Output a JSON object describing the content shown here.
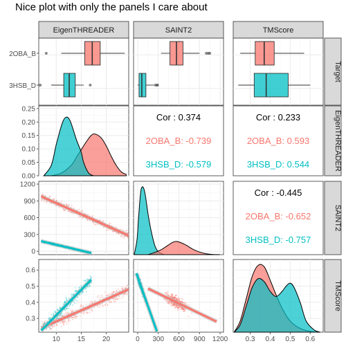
{
  "chart_data": {
    "type": "pairs",
    "title": "Nice plot with only the panels I care about",
    "variables": [
      "EigenTHREADER",
      "SAINT2",
      "TMScore"
    ],
    "row_labels": [
      "Target",
      "EigenTHREADER",
      "SAINT2",
      "TMScore"
    ],
    "groups": [
      {
        "name": "2OBA_B",
        "color": "#F8766D"
      },
      {
        "name": "3HSB_D",
        "color": "#00BFC4"
      }
    ],
    "axes": {
      "EigenTHREADER": {
        "range": [
          6.5,
          24.5
        ],
        "ticks": [
          10,
          15,
          20
        ]
      },
      "SAINT2": {
        "range": [
          -60,
          1250
        ],
        "ticks": [
          0,
          300,
          600,
          900,
          1200
        ]
      },
      "TMScore": {
        "range": [
          0.215,
          0.665
        ],
        "ticks": [
          0.3,
          0.4,
          0.5,
          0.6
        ]
      },
      "EigenTHREADER_density": {
        "range": [
          0,
          0.26
        ],
        "ticks": [
          0,
          0.05,
          0.1,
          0.15,
          0.2,
          0.25
        ],
        "tick_labels": [
          "0.00",
          "0.05",
          "0.10",
          "0.15",
          "0.20",
          "0.25"
        ]
      }
    },
    "boxplots": {
      "EigenTHREADER": [
        {
          "group": "2OBA_B",
          "min": 11,
          "q1": 15.7,
          "median": 17.2,
          "q3": 18.8,
          "max": 23.7,
          "outliers": [
            8
          ]
        },
        {
          "group": "3HSB_D",
          "min": 9,
          "q1": 11.5,
          "median": 12.6,
          "q3": 13.8,
          "max": 15.5,
          "outliers": [
            6.8,
            16.8
          ]
        }
      ],
      "SAINT2": [
        {
          "group": "2OBA_B",
          "min": 340,
          "q1": 470,
          "median": 565,
          "q3": 660,
          "max": 900,
          "outliers": [
            1000,
            1030,
            1050
          ]
        },
        {
          "group": "3HSB_D",
          "min": 0,
          "q1": 20,
          "median": 60,
          "q3": 120,
          "max": 240,
          "outliers": [
            260,
            280,
            290
          ]
        }
      ],
      "TMScore": [
        {
          "group": "2OBA_B",
          "min": 0.25,
          "q1": 0.325,
          "median": 0.37,
          "q3": 0.42,
          "max": 0.57,
          "outliers": []
        },
        {
          "group": "3HSB_D",
          "min": 0.24,
          "q1": 0.32,
          "median": 0.38,
          "q3": 0.49,
          "max": 0.6,
          "outliers": []
        }
      ]
    },
    "densities": {
      "EigenTHREADER": [
        {
          "group": "2OBA_B",
          "x": [
            9,
            11,
            13,
            14,
            15,
            16,
            17,
            17.8,
            19,
            20,
            21,
            22,
            23,
            24
          ],
          "y": [
            0,
            0.01,
            0.04,
            0.07,
            0.1,
            0.13,
            0.155,
            0.16,
            0.145,
            0.115,
            0.075,
            0.04,
            0.015,
            0.005
          ]
        },
        {
          "group": "3HSB_D",
          "x": [
            7.5,
            9,
            10,
            11,
            11.5,
            12,
            12.5,
            13,
            14,
            15,
            15.5,
            16.5,
            17.5
          ],
          "y": [
            0,
            0.04,
            0.12,
            0.19,
            0.215,
            0.225,
            0.22,
            0.2,
            0.14,
            0.09,
            0.05,
            0.01,
            0
          ]
        }
      ],
      "SAINT2": [
        {
          "group": "3HSB_D",
          "x": [
            -50,
            -10,
            10,
            30,
            50,
            80,
            110,
            150,
            200,
            250,
            300,
            380
          ],
          "y": [
            0,
            0.2,
            0.45,
            0.7,
            0.87,
            0.9,
            0.8,
            0.55,
            0.3,
            0.12,
            0.04,
            0
          ]
        },
        {
          "group": "2OBA_B",
          "x": [
            150,
            250,
            350,
            450,
            500,
            550,
            600,
            700,
            800,
            900,
            1000,
            1100,
            1200
          ],
          "y": [
            0,
            0.03,
            0.07,
            0.13,
            0.16,
            0.175,
            0.17,
            0.13,
            0.075,
            0.035,
            0.012,
            0.003,
            0
          ]
        }
      ],
      "TMScore": [
        {
          "group": "2OBA_B",
          "x": [
            0.22,
            0.25,
            0.28,
            0.31,
            0.34,
            0.37,
            0.4,
            0.43,
            0.46,
            0.5,
            0.55,
            0.6,
            0.63
          ],
          "y": [
            0,
            0.15,
            0.45,
            0.75,
            0.9,
            0.88,
            0.7,
            0.5,
            0.32,
            0.15,
            0.05,
            0.01,
            0
          ]
        },
        {
          "group": "3HSB_D",
          "x": [
            0.22,
            0.25,
            0.28,
            0.31,
            0.34,
            0.37,
            0.4,
            0.43,
            0.46,
            0.48,
            0.5,
            0.52,
            0.55,
            0.58,
            0.62,
            0.65
          ],
          "y": [
            0,
            0.1,
            0.35,
            0.6,
            0.72,
            0.68,
            0.55,
            0.48,
            0.55,
            0.62,
            0.66,
            0.6,
            0.4,
            0.15,
            0.03,
            0
          ]
        }
      ]
    },
    "correlations": [
      {
        "pair": [
          "EigenTHREADER",
          "SAINT2"
        ],
        "overall": "Cor : 0.374",
        "groups": [
          "2OBA_B: -0.739",
          "3HSB_D: -0.579"
        ]
      },
      {
        "pair": [
          "EigenTHREADER",
          "TMScore"
        ],
        "overall": "Cor : 0.233",
        "groups": [
          "2OBA_B: 0.593",
          "3HSB_D: 0.544"
        ]
      },
      {
        "pair": [
          "SAINT2",
          "TMScore"
        ],
        "overall": "Cor : -0.445",
        "groups": [
          "2OBA_B: -0.652",
          "3HSB_D: -0.757"
        ]
      }
    ],
    "scatter_fits": {
      "SAINT2_vs_EigenTHREADER": [
        {
          "group": "2OBA_B",
          "x_range": [
            7,
            24.5
          ],
          "line": [
            [
              7,
              980
            ],
            [
              24.5,
              280
            ]
          ],
          "y_range": [
            150,
            1150
          ]
        },
        {
          "group": "3HSB_D",
          "x_range": [
            7,
            17
          ],
          "line": [
            [
              7,
              180
            ],
            [
              17,
              -30
            ]
          ],
          "y_range": [
            -40,
            250
          ]
        }
      ],
      "TMScore_vs_EigenTHREADER": [
        {
          "group": "2OBA_B",
          "x_range": [
            7,
            24.5
          ],
          "line": [
            [
              7,
              0.24
            ],
            [
              24.5,
              0.48
            ]
          ],
          "y_range": [
            0.23,
            0.52
          ]
        },
        {
          "group": "3HSB_D",
          "x_range": [
            7,
            17
          ],
          "line": [
            [
              7,
              0.225
            ],
            [
              17,
              0.54
            ]
          ],
          "y_range": [
            0.24,
            0.62
          ]
        }
      ],
      "TMScore_vs_SAINT2": [
        {
          "group": "2OBA_B",
          "x_range": [
            150,
            1150
          ],
          "line": [
            [
              150,
              0.485
            ],
            [
              1150,
              0.28
            ]
          ],
          "y_range": [
            0.25,
            0.56
          ]
        },
        {
          "group": "3HSB_D",
          "x_range": [
            -20,
            320
          ],
          "line": [
            [
              -20,
              0.58
            ],
            [
              280,
              0.22
            ]
          ],
          "y_range": [
            0.24,
            0.62
          ]
        }
      ]
    },
    "grid": true
  }
}
